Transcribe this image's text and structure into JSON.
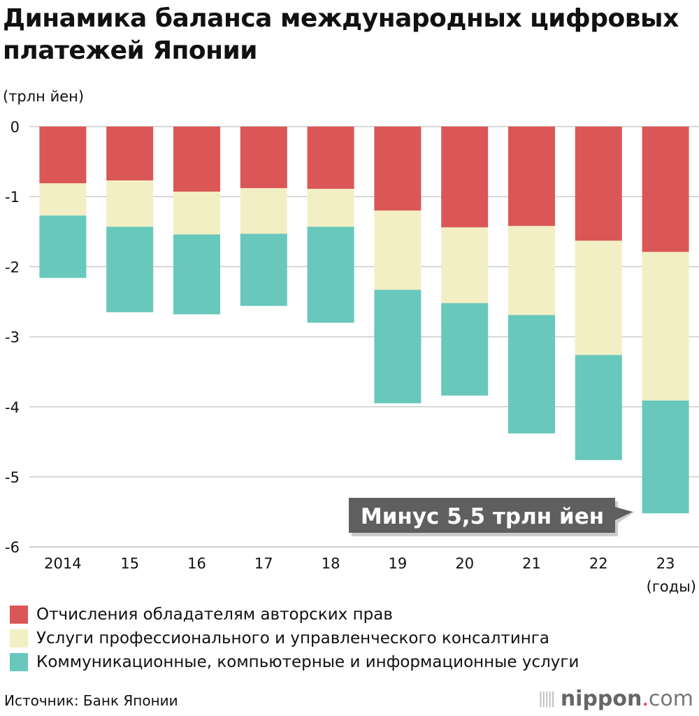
{
  "chart_data": {
    "type": "bar",
    "stacked": true,
    "title": "Динамика баланса международных цифровых платежей Японии",
    "ylabel": "(трлн йен)",
    "xlabel": "(годы)",
    "ylim": [
      -6,
      0
    ],
    "yticks": [
      "0",
      "-1",
      "-2",
      "-3",
      "-4",
      "-5",
      "-6"
    ],
    "ytick_values": [
      0,
      -1,
      -2,
      -3,
      -4,
      -5,
      -6
    ],
    "grid": true,
    "legend_position": "bottom",
    "categories": [
      "2014",
      "15",
      "16",
      "17",
      "18",
      "19",
      "20",
      "21",
      "22",
      "23"
    ],
    "series": [
      {
        "name": "Отчисления обладателям авторских прав",
        "color": "#db5757",
        "values": [
          -0.81,
          -0.77,
          -0.93,
          -0.88,
          -0.89,
          -1.2,
          -1.44,
          -1.42,
          -1.63,
          -1.79
        ]
      },
      {
        "name": "Услуги профессионального и управленческого консалтинга",
        "color": "#f3efc4",
        "values": [
          -0.46,
          -0.66,
          -0.61,
          -0.65,
          -0.54,
          -1.13,
          -1.08,
          -1.27,
          -1.63,
          -2.12
        ]
      },
      {
        "name": "Коммуникационные, компьютерные и информационные услуги",
        "color": "#68c8bb",
        "values": [
          -0.89,
          -1.22,
          -1.14,
          -1.03,
          -1.37,
          -1.62,
          -1.32,
          -1.69,
          -1.5,
          -1.61
        ]
      }
    ],
    "annotation": "Минус 5,5 трлн йен"
  },
  "source": "Источник: Банк Японии",
  "logo": {
    "name": "nippon",
    "dot": ".",
    "tld": "com"
  }
}
